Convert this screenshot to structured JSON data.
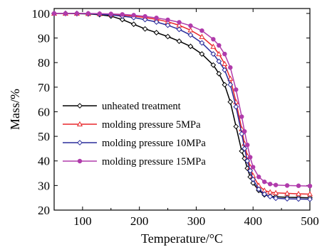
{
  "chart_data": {
    "type": "line",
    "title": "",
    "xlabel": "Temperature/°C",
    "ylabel": "Mass/%",
    "xlim": [
      50,
      500
    ],
    "ylim": [
      20,
      102
    ],
    "xticks": [
      100,
      200,
      300,
      400,
      500
    ],
    "yticks": [
      20,
      30,
      40,
      50,
      60,
      70,
      80,
      90,
      100
    ],
    "grid": false,
    "legend_position": "bottom-left",
    "series": [
      {
        "name": "unheated treatment",
        "color": "#000000",
        "marker": "diamond-open",
        "points": [
          [
            50,
            100
          ],
          [
            70,
            100
          ],
          [
            90,
            99.9
          ],
          [
            110,
            99.8
          ],
          [
            130,
            99.5
          ],
          [
            150,
            98.9
          ],
          [
            170,
            97.5
          ],
          [
            190,
            95.6
          ],
          [
            210,
            93.7
          ],
          [
            230,
            92.2
          ],
          [
            250,
            90.6
          ],
          [
            270,
            88.7
          ],
          [
            290,
            86.6
          ],
          [
            310,
            83.5
          ],
          [
            330,
            79
          ],
          [
            340,
            75.5
          ],
          [
            350,
            71
          ],
          [
            360,
            64
          ],
          [
            370,
            54
          ],
          [
            380,
            44
          ],
          [
            385,
            41
          ],
          [
            390,
            37
          ],
          [
            395,
            33.5
          ],
          [
            400,
            31
          ],
          [
            410,
            28
          ],
          [
            420,
            26.2
          ],
          [
            430,
            25.6
          ],
          [
            440,
            25.4
          ],
          [
            460,
            25.2
          ],
          [
            480,
            25.1
          ],
          [
            500,
            25
          ]
        ]
      },
      {
        "name": "molding pressure 5MPa",
        "color": "#e8262a",
        "marker": "triangle-open",
        "points": [
          [
            50,
            100
          ],
          [
            70,
            100
          ],
          [
            90,
            100
          ],
          [
            110,
            99.9
          ],
          [
            130,
            99.8
          ],
          [
            150,
            99.6
          ],
          [
            170,
            99.3
          ],
          [
            190,
            98.9
          ],
          [
            210,
            98.3
          ],
          [
            230,
            97.6
          ],
          [
            250,
            96.6
          ],
          [
            270,
            95.2
          ],
          [
            290,
            93.2
          ],
          [
            310,
            90.5
          ],
          [
            330,
            86.5
          ],
          [
            340,
            83.5
          ],
          [
            350,
            79.5
          ],
          [
            360,
            73.5
          ],
          [
            370,
            64
          ],
          [
            380,
            53
          ],
          [
            385,
            47
          ],
          [
            390,
            42
          ],
          [
            395,
            37.5
          ],
          [
            400,
            34
          ],
          [
            410,
            30
          ],
          [
            420,
            28
          ],
          [
            430,
            27.3
          ],
          [
            440,
            27
          ],
          [
            460,
            26.8
          ],
          [
            480,
            26.6
          ],
          [
            500,
            26.5
          ]
        ]
      },
      {
        "name": "molding pressure 10MPa",
        "color": "#2a2d9c",
        "marker": "diamond-open",
        "points": [
          [
            50,
            100
          ],
          [
            70,
            100
          ],
          [
            90,
            100
          ],
          [
            110,
            99.9
          ],
          [
            130,
            99.7
          ],
          [
            150,
            99.4
          ],
          [
            170,
            98.9
          ],
          [
            190,
            98.3
          ],
          [
            210,
            97.5
          ],
          [
            230,
            96.5
          ],
          [
            250,
            95.2
          ],
          [
            270,
            93.5
          ],
          [
            290,
            91.2
          ],
          [
            310,
            88
          ],
          [
            330,
            83.5
          ],
          [
            340,
            80.5
          ],
          [
            350,
            77
          ],
          [
            360,
            71
          ],
          [
            370,
            62
          ],
          [
            380,
            51
          ],
          [
            385,
            45
          ],
          [
            390,
            40
          ],
          [
            395,
            36
          ],
          [
            400,
            32.5
          ],
          [
            410,
            28.5
          ],
          [
            420,
            26.5
          ],
          [
            430,
            25.5
          ],
          [
            440,
            24.8
          ],
          [
            460,
            24.6
          ],
          [
            480,
            24.5
          ],
          [
            500,
            24.4
          ]
        ]
      },
      {
        "name": "molding pressure 15MPa",
        "color": "#b03bab",
        "marker": "circle-filled",
        "points": [
          [
            50,
            100
          ],
          [
            70,
            100
          ],
          [
            90,
            100
          ],
          [
            110,
            100
          ],
          [
            130,
            99.9
          ],
          [
            150,
            99.8
          ],
          [
            170,
            99.6
          ],
          [
            190,
            99.3
          ],
          [
            210,
            98.8
          ],
          [
            230,
            98.2
          ],
          [
            250,
            97.4
          ],
          [
            270,
            96.4
          ],
          [
            290,
            95
          ],
          [
            310,
            93
          ],
          [
            330,
            89.5
          ],
          [
            340,
            87
          ],
          [
            350,
            83.5
          ],
          [
            360,
            78
          ],
          [
            370,
            69
          ],
          [
            380,
            58
          ],
          [
            385,
            52
          ],
          [
            390,
            46.5
          ],
          [
            395,
            41.5
          ],
          [
            400,
            37.5
          ],
          [
            410,
            33.5
          ],
          [
            420,
            31.5
          ],
          [
            430,
            30.6
          ],
          [
            440,
            30.2
          ],
          [
            460,
            30
          ],
          [
            480,
            29.9
          ],
          [
            500,
            29.8
          ]
        ]
      }
    ]
  }
}
